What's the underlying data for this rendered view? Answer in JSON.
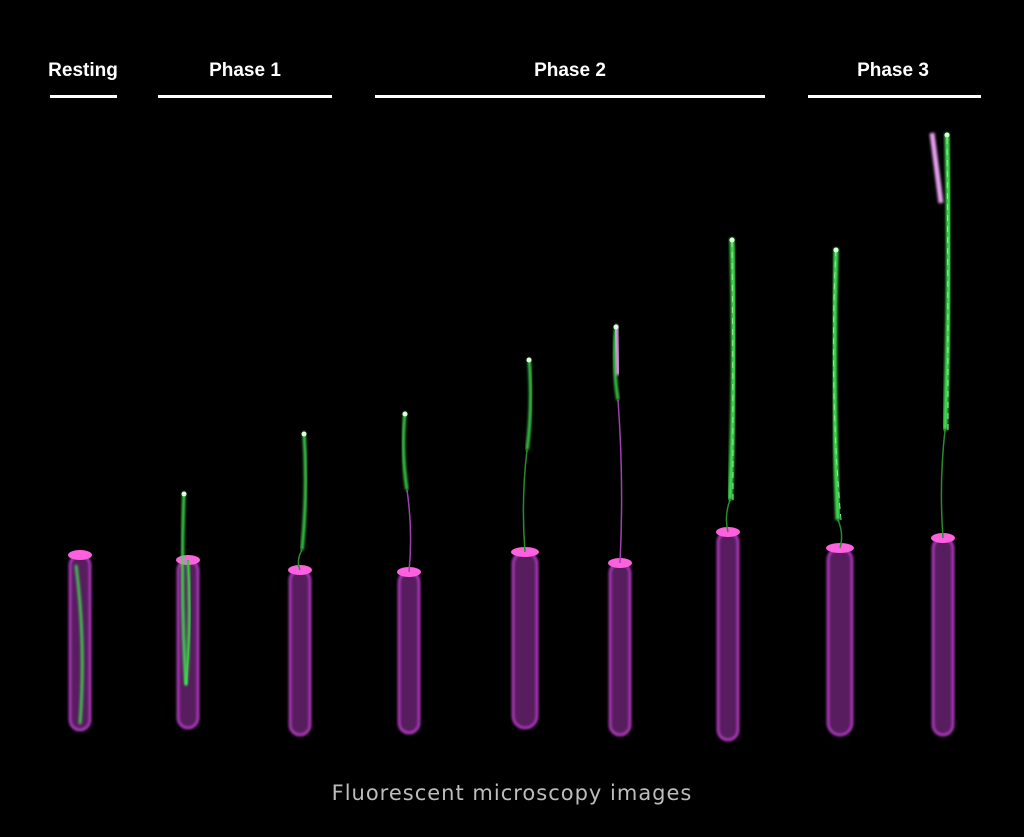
{
  "groups": [
    {
      "label": "Resting",
      "cells": 1
    },
    {
      "label": "Phase 1",
      "cells": 2
    },
    {
      "label": "Phase 2",
      "cells": 4
    },
    {
      "label": "Phase 3",
      "cells": 2
    }
  ],
  "caption": "Fluorescent microscopy images",
  "colors": {
    "background": "#000000",
    "membrane_stain": "#c040d0",
    "filament_stain": "#40e050",
    "text": "#ffffff",
    "caption": "#bdbdbd"
  }
}
